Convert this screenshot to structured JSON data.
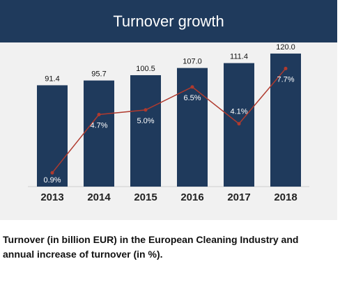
{
  "banner": {
    "title": "Turnover growth"
  },
  "caption": "Turnover (in billion EUR) in the European Cleaning Industry and annual increase of turnover (in %).",
  "colors": {
    "bar": "#1f3a5c",
    "line": "#b03a2e",
    "banner": "#1f3a5c",
    "background": "#f1f1f1"
  },
  "chart_data": {
    "type": "bar",
    "title": "Turnover growth",
    "categories": [
      "2013",
      "2014",
      "2015",
      "2016",
      "2017",
      "2018"
    ],
    "series": [
      {
        "type": "bar",
        "values": [
          91.4,
          95.7,
          100.5,
          107.0,
          111.4,
          120.0
        ],
        "labels": [
          "91.4",
          "95.7",
          "100.5",
          "107.0",
          "111.4",
          "120.0"
        ]
      },
      {
        "type": "line",
        "values": [
          0.9,
          4.7,
          5.0,
          6.5,
          4.1,
          7.7
        ],
        "labels": [
          "0.9%",
          "4.7%",
          "5.0%",
          "6.5%",
          "4.1%",
          "7.7%"
        ]
      }
    ],
    "ylim": [
      0,
      130
    ],
    "y2lim": [
      0,
      9.4
    ],
    "grid": false,
    "legend": "none"
  }
}
